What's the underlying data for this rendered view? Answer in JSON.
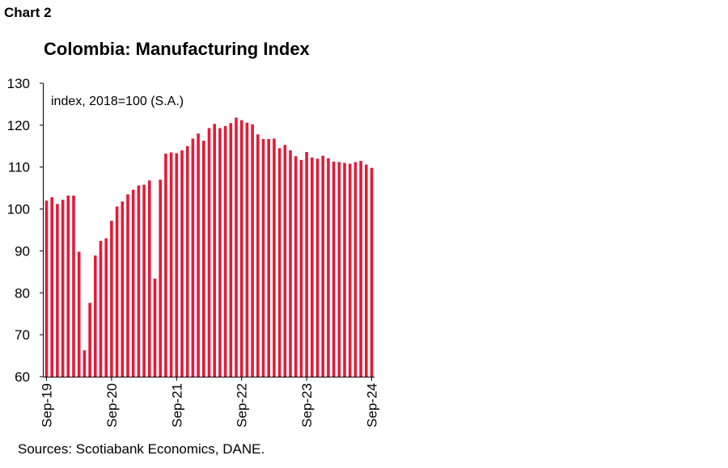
{
  "heading": "Chart 2",
  "source": "Sources: Scotiabank Economics, DANE.",
  "chart_data": {
    "type": "bar",
    "title": "Colombia: Manufacturing Index",
    "unit_note": "index, 2018=100 (S.A.)",
    "ylim": [
      60,
      130
    ],
    "yticks": [
      60,
      70,
      80,
      90,
      100,
      110,
      120,
      130
    ],
    "xticks": [
      "Sep-19",
      "Sep-20",
      "Sep-21",
      "Sep-22",
      "Sep-23",
      "Sep-24"
    ],
    "grid": false,
    "bar_color": "#e31b38",
    "categories": [
      "Sep-19",
      "Oct-19",
      "Nov-19",
      "Dec-19",
      "Jan-20",
      "Feb-20",
      "Mar-20",
      "Apr-20",
      "May-20",
      "Jun-20",
      "Jul-20",
      "Aug-20",
      "Sep-20",
      "Oct-20",
      "Nov-20",
      "Dec-20",
      "Jan-21",
      "Feb-21",
      "Mar-21",
      "Apr-21",
      "May-21",
      "Jun-21",
      "Jul-21",
      "Aug-21",
      "Sep-21",
      "Oct-21",
      "Nov-21",
      "Dec-21",
      "Jan-22",
      "Feb-22",
      "Mar-22",
      "Apr-22",
      "May-22",
      "Jun-22",
      "Jul-22",
      "Aug-22",
      "Sep-22",
      "Oct-22",
      "Nov-22",
      "Dec-22",
      "Jan-23",
      "Feb-23",
      "Mar-23",
      "Apr-23",
      "May-23",
      "Jun-23",
      "Jul-23",
      "Aug-23",
      "Sep-23",
      "Oct-23",
      "Nov-23",
      "Dec-23",
      "Jan-24",
      "Feb-24",
      "Mar-24",
      "Apr-24",
      "May-24",
      "Jun-24",
      "Jul-24",
      "Aug-24",
      "Sep-24"
    ],
    "values": [
      102.0,
      102.8,
      101.2,
      102.2,
      103.2,
      103.2,
      89.8,
      66.3,
      77.6,
      88.9,
      92.4,
      93.0,
      97.2,
      100.6,
      101.8,
      103.5,
      104.6,
      105.6,
      105.8,
      106.8,
      83.4,
      107.0,
      113.2,
      113.5,
      113.3,
      114.0,
      115.0,
      116.8,
      118.0,
      116.3,
      119.3,
      120.3,
      119.3,
      119.8,
      120.5,
      121.8,
      121.2,
      120.6,
      120.2,
      117.8,
      116.7,
      116.7,
      116.8,
      114.5,
      115.3,
      114.0,
      112.6,
      111.7,
      113.6,
      112.3,
      112.0,
      112.7,
      112.1,
      111.3,
      111.2,
      111.0,
      110.8,
      111.2,
      111.5,
      110.6,
      109.8
    ]
  }
}
